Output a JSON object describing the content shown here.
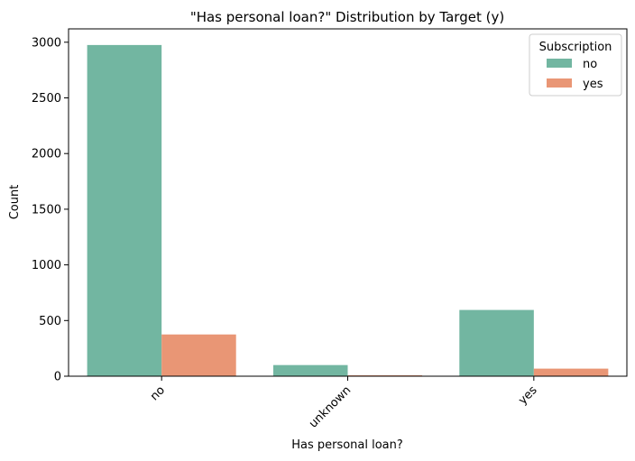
{
  "chart_data": {
    "type": "bar",
    "title": "\"Has personal loan?\" Distribution by Target (y)",
    "xlabel": "Has personal loan?",
    "ylabel": "Count",
    "categories": [
      "no",
      "unknown",
      "yes"
    ],
    "ylim": [
      0,
      3120
    ],
    "yticks": [
      0,
      500,
      1000,
      1500,
      2000,
      2500,
      3000
    ],
    "legend": {
      "title": "Subscription",
      "position": "top-right"
    },
    "series": [
      {
        "name": "no",
        "color": "#72b6a1",
        "values": [
          2975,
          100,
          595
        ]
      },
      {
        "name": "yes",
        "color": "#e99675",
        "values": [
          375,
          8,
          68
        ]
      }
    ]
  }
}
